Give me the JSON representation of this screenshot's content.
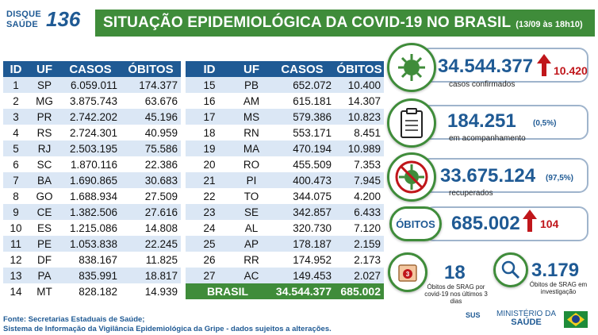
{
  "logo": {
    "line1": "DISQUE",
    "line2": "SAÚDE",
    "number": "136"
  },
  "header": {
    "title": "SITUAÇÃO EPIDEMIOLÓGICA DA COVID-19 NO BRASIL",
    "timestamp": "(13/09 às 18h10)"
  },
  "table": {
    "headers": [
      "ID",
      "UF",
      "CASOS",
      "ÓBITOS"
    ],
    "left_rows": [
      [
        "1",
        "SP",
        "6.059.011",
        "174.377"
      ],
      [
        "2",
        "MG",
        "3.875.743",
        "63.676"
      ],
      [
        "3",
        "PR",
        "2.742.202",
        "45.196"
      ],
      [
        "4",
        "RS",
        "2.724.301",
        "40.959"
      ],
      [
        "5",
        "RJ",
        "2.503.195",
        "75.586"
      ],
      [
        "6",
        "SC",
        "1.870.116",
        "22.386"
      ],
      [
        "7",
        "BA",
        "1.690.865",
        "30.683"
      ],
      [
        "8",
        "GO",
        "1.688.934",
        "27.509"
      ],
      [
        "9",
        "CE",
        "1.382.506",
        "27.616"
      ],
      [
        "10",
        "ES",
        "1.215.086",
        "14.808"
      ],
      [
        "11",
        "PE",
        "1.053.838",
        "22.245"
      ],
      [
        "12",
        "DF",
        "838.167",
        "11.825"
      ],
      [
        "13",
        "PA",
        "835.991",
        "18.817"
      ],
      [
        "14",
        "MT",
        "828.182",
        "14.939"
      ]
    ],
    "right_rows": [
      [
        "15",
        "PB",
        "652.072",
        "10.400"
      ],
      [
        "16",
        "AM",
        "615.181",
        "14.307"
      ],
      [
        "17",
        "MS",
        "579.386",
        "10.823"
      ],
      [
        "18",
        "RN",
        "553.171",
        "8.451"
      ],
      [
        "19",
        "MA",
        "470.194",
        "10.989"
      ],
      [
        "20",
        "RO",
        "455.509",
        "7.353"
      ],
      [
        "21",
        "PI",
        "400.473",
        "7.945"
      ],
      [
        "22",
        "TO",
        "344.075",
        "4.200"
      ],
      [
        "23",
        "SE",
        "342.857",
        "6.433"
      ],
      [
        "24",
        "AL",
        "320.730",
        "7.120"
      ],
      [
        "25",
        "AP",
        "178.187",
        "2.159"
      ],
      [
        "26",
        "RR",
        "174.952",
        "2.173"
      ],
      [
        "27",
        "AC",
        "149.453",
        "2.027"
      ]
    ],
    "total": {
      "label": "BRASIL",
      "casos": "34.544.377",
      "obitos": "685.002"
    }
  },
  "stats": {
    "confirmed": {
      "value": "34.544.377",
      "delta": "10.420",
      "label": "casos confirmados"
    },
    "monitoring": {
      "value": "184.251",
      "pct": "(0,5%)",
      "label": "em acompanhamento"
    },
    "recovered": {
      "value": "33.675.124",
      "pct": "(97,5%)",
      "label": "recuperados"
    },
    "deaths": {
      "tag": "ÓBITOS",
      "value": "685.002",
      "delta": "104"
    },
    "srag_recent": {
      "value": "18",
      "label": "Óbitos de SRAG por covid-19 nos últimos 3 dias",
      "badge": "3"
    },
    "srag_investigation": {
      "value": "3.179",
      "label": "Óbitos de SRAG em investigação"
    }
  },
  "footer": {
    "line1": "Fonte: Secretarias Estaduais de Saúde;",
    "line2": "Sistema de Informação da Vigilância Epidemiológica da Gripe - dados sujeitos a alterações."
  },
  "brand": {
    "sus": "SUS",
    "ministry_line1": "MINISTÉRIO DA",
    "ministry_line2": "SAÚDE"
  },
  "colors": {
    "blue": "#1f5a94",
    "green": "#3f8c3a",
    "red": "#c0161b",
    "row_alt": "#dbe7f5"
  }
}
